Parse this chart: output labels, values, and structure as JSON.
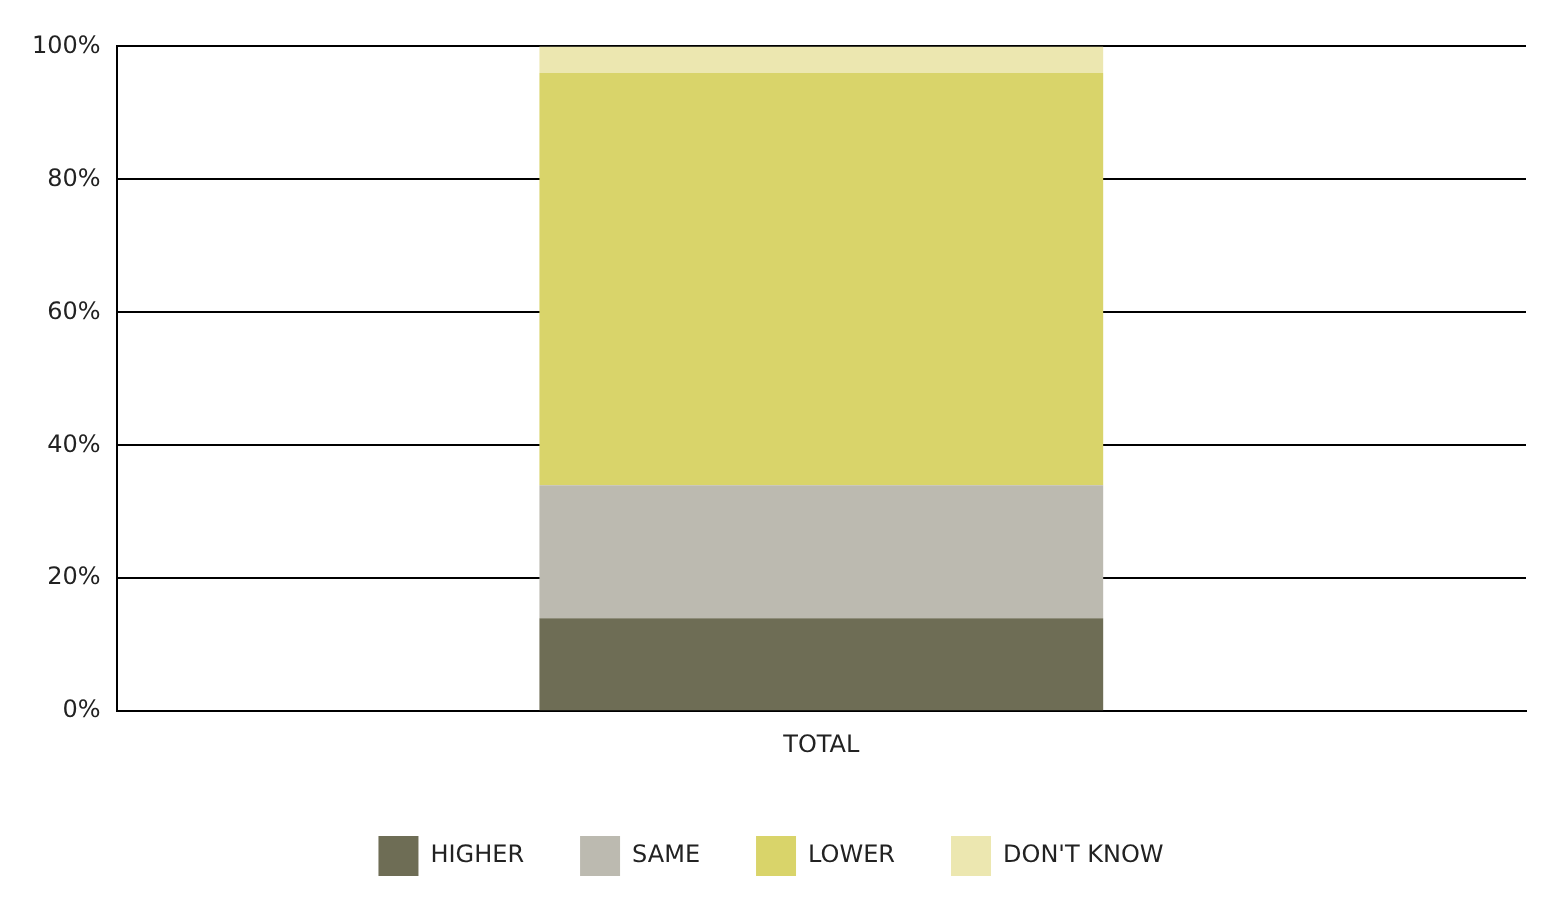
{
  "chart_data": {
    "type": "bar",
    "stacked": true,
    "categories": [
      "TOTAL"
    ],
    "series": [
      {
        "name": "HIGHER",
        "color": "#6e6d55",
        "values": [
          14
        ]
      },
      {
        "name": "SAME",
        "color": "#bcbab0",
        "values": [
          20
        ]
      },
      {
        "name": "LOWER",
        "color": "#d9d46a",
        "values": [
          62
        ]
      },
      {
        "name": "DON'T KNOW",
        "color": "#ece7b0",
        "values": [
          4
        ]
      }
    ],
    "ylim": [
      0,
      100
    ],
    "yticks": [
      {
        "value": 0,
        "label": "0%"
      },
      {
        "value": 20,
        "label": "20%"
      },
      {
        "value": 40,
        "label": "40%"
      },
      {
        "value": 60,
        "label": "60%"
      },
      {
        "value": 80,
        "label": "80%"
      },
      {
        "value": 100,
        "label": "100%"
      }
    ],
    "grid": "y",
    "legend": "bottom"
  }
}
